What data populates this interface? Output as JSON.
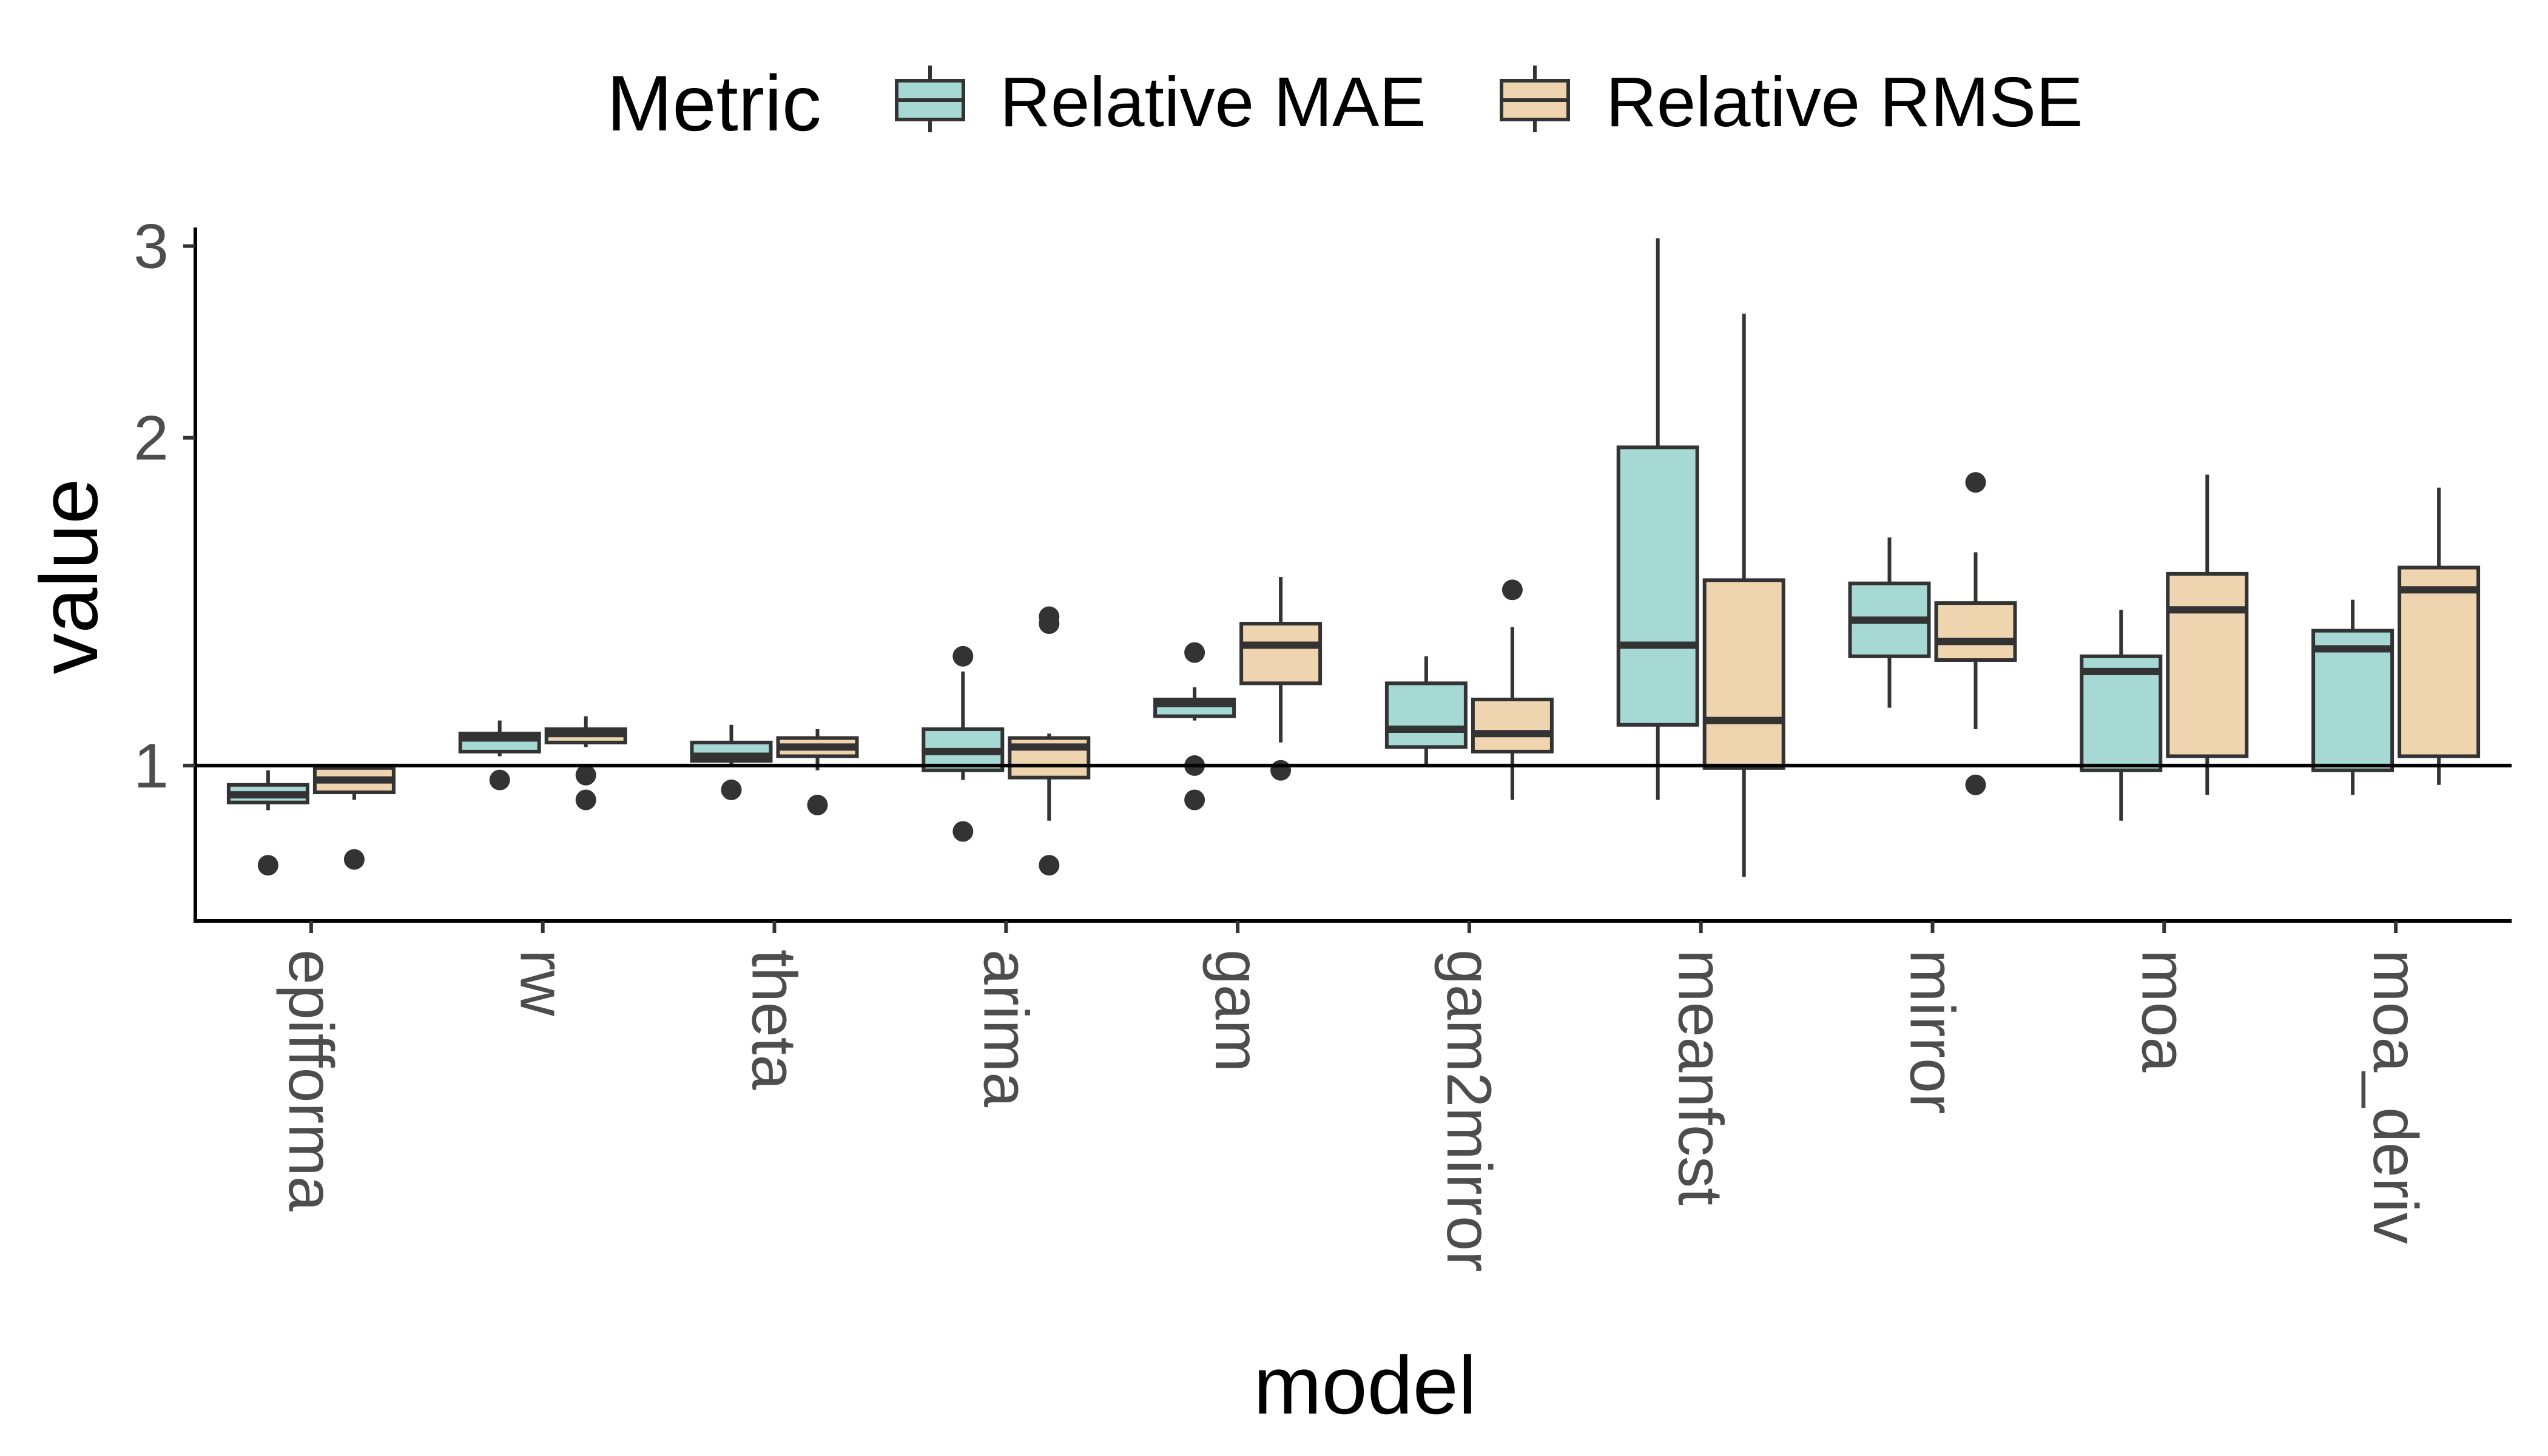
{
  "chart_data": {
    "type": "boxplot",
    "xlabel": "model",
    "ylabel": "value",
    "y_scale": "log",
    "ylim": [
      0.72,
      3.12
    ],
    "y_ticks": [
      1,
      2,
      3
    ],
    "y_tick_labels": [
      "1",
      "2",
      "3"
    ],
    "reference_line": 1,
    "legend": {
      "title": "Metric",
      "position": "top",
      "entries": [
        "Relative MAE",
        "Relative RMSE"
      ]
    },
    "colors": {
      "Relative MAE": "#a6d8d4",
      "Relative RMSE": "#eed5b0",
      "stroke": "#333333"
    },
    "categories": [
      "epifforma",
      "rw",
      "theta",
      "arima",
      "gam",
      "gam2mirror",
      "meanfcst",
      "mirror",
      "moa",
      "moa_deriv"
    ],
    "series": [
      {
        "name": "Relative MAE",
        "boxes": [
          {
            "min": 0.91,
            "q1": 0.925,
            "median": 0.94,
            "q3": 0.96,
            "max": 0.99,
            "outliers": [
              0.81
            ]
          },
          {
            "min": 1.02,
            "q1": 1.03,
            "median": 1.06,
            "q3": 1.07,
            "max": 1.1,
            "outliers": [
              0.97
            ]
          },
          {
            "min": 1.0,
            "q1": 1.01,
            "median": 1.02,
            "q3": 1.05,
            "max": 1.09,
            "outliers": [
              0.95
            ]
          },
          {
            "min": 0.97,
            "q1": 0.99,
            "median": 1.03,
            "q3": 1.08,
            "max": 1.22,
            "outliers": [
              1.26,
              0.87
            ]
          },
          {
            "min": 1.1,
            "q1": 1.11,
            "median": 1.14,
            "q3": 1.15,
            "max": 1.18,
            "outliers": [
              1.27,
              1.0,
              0.93
            ]
          },
          {
            "min": 1.0,
            "q1": 1.04,
            "median": 1.08,
            "q3": 1.19,
            "max": 1.26,
            "outliers": []
          },
          {
            "min": 0.93,
            "q1": 1.09,
            "median": 1.29,
            "q3": 1.96,
            "max": 3.05,
            "outliers": []
          },
          {
            "min": 1.13,
            "q1": 1.26,
            "median": 1.36,
            "q3": 1.47,
            "max": 1.62,
            "outliers": []
          },
          {
            "min": 0.89,
            "q1": 0.99,
            "median": 1.22,
            "q3": 1.26,
            "max": 1.39,
            "outliers": []
          },
          {
            "min": 0.94,
            "q1": 0.99,
            "median": 1.28,
            "q3": 1.33,
            "max": 1.42,
            "outliers": []
          }
        ]
      },
      {
        "name": "Relative RMSE",
        "boxes": [
          {
            "min": 0.93,
            "q1": 0.945,
            "median": 0.97,
            "q3": 0.995,
            "max": 1.0,
            "outliers": [
              0.82
            ]
          },
          {
            "min": 1.04,
            "q1": 1.05,
            "median": 1.07,
            "q3": 1.08,
            "max": 1.11,
            "outliers": [
              0.98,
              0.93
            ]
          },
          {
            "min": 0.99,
            "q1": 1.02,
            "median": 1.04,
            "q3": 1.06,
            "max": 1.08,
            "outliers": [
              0.92
            ]
          },
          {
            "min": 0.89,
            "q1": 0.975,
            "median": 1.04,
            "q3": 1.06,
            "max": 1.07,
            "outliers": [
              1.37,
              1.35,
              0.81
            ]
          },
          {
            "min": 1.05,
            "q1": 1.19,
            "median": 1.29,
            "q3": 1.35,
            "max": 1.49,
            "outliers": [
              0.99
            ]
          },
          {
            "min": 0.93,
            "q1": 1.03,
            "median": 1.07,
            "q3": 1.15,
            "max": 1.34,
            "outliers": [
              1.45
            ]
          },
          {
            "min": 0.79,
            "q1": 0.995,
            "median": 1.1,
            "q3": 1.48,
            "max": 2.6,
            "outliers": []
          },
          {
            "min": 1.08,
            "q1": 1.25,
            "median": 1.3,
            "q3": 1.41,
            "max": 1.57,
            "outliers": [
              1.82,
              0.96
            ]
          },
          {
            "min": 0.94,
            "q1": 1.02,
            "median": 1.39,
            "q3": 1.5,
            "max": 1.85,
            "outliers": []
          },
          {
            "min": 0.96,
            "q1": 1.02,
            "median": 1.45,
            "q3": 1.52,
            "max": 1.8,
            "outliers": []
          }
        ]
      }
    ]
  }
}
